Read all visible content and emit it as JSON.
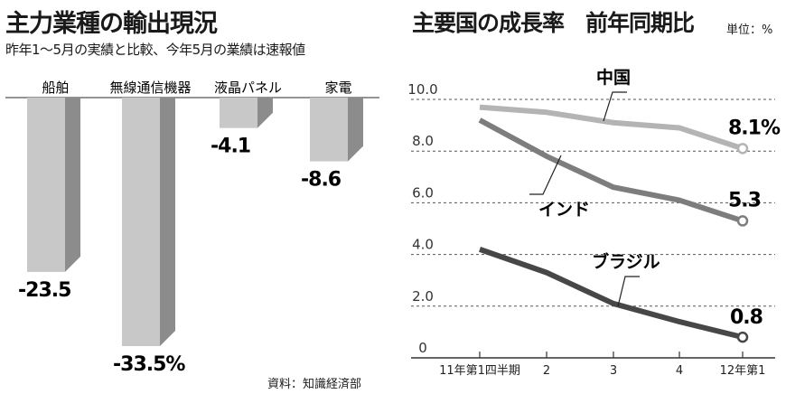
{
  "left_chart": {
    "title": "主力業種の輸出現況",
    "subtitle": "昨年1～5月の実績と比較、今年5月の業績は速報値",
    "source": "資料：知識経済部"
  },
  "right_chart": {
    "title": "主要国の成長率　前年同期比",
    "unit": "単位：%"
  },
  "chart_data": [
    {
      "type": "bar",
      "title": "主力業種の輸出現況",
      "subtitle": "昨年1～5月の実績と比較、今年5月の業績は速報値",
      "categories": [
        "船舶",
        "無線通信機器",
        "液晶パネル",
        "家電"
      ],
      "values": [
        -23.5,
        -33.5,
        -4.1,
        -8.6
      ],
      "value_labels": [
        "-23.5",
        "-33.5%",
        "-4.1",
        "-8.6"
      ],
      "ylim": [
        -38,
        0
      ],
      "colors": {
        "front": "#c8c8c8",
        "side": "#8c8c8c"
      },
      "source": "資料：知識経済部"
    },
    {
      "type": "line",
      "title": "主要国の成長率　前年同期比",
      "unit": "単位：%",
      "x": [
        "11年第1四半期",
        "2",
        "3",
        "4",
        "12年第1"
      ],
      "y_ticks": [
        "0",
        "2.0",
        "4.0",
        "6.0",
        "8.0",
        "10.0"
      ],
      "ylim": [
        0,
        10.5
      ],
      "grid": true,
      "series": [
        {
          "name": "中国",
          "values": [
            9.7,
            9.5,
            9.1,
            8.9,
            8.1
          ],
          "end_label": "8.1%",
          "color": "#b4b4b4"
        },
        {
          "name": "インド",
          "values": [
            9.2,
            7.8,
            6.6,
            6.1,
            5.3
          ],
          "end_label": "5.3",
          "color": "#7d7d7d"
        },
        {
          "name": "ブラジル",
          "values": [
            4.2,
            3.3,
            2.1,
            1.4,
            0.8
          ],
          "end_label": "0.8",
          "color": "#474747"
        }
      ]
    }
  ]
}
